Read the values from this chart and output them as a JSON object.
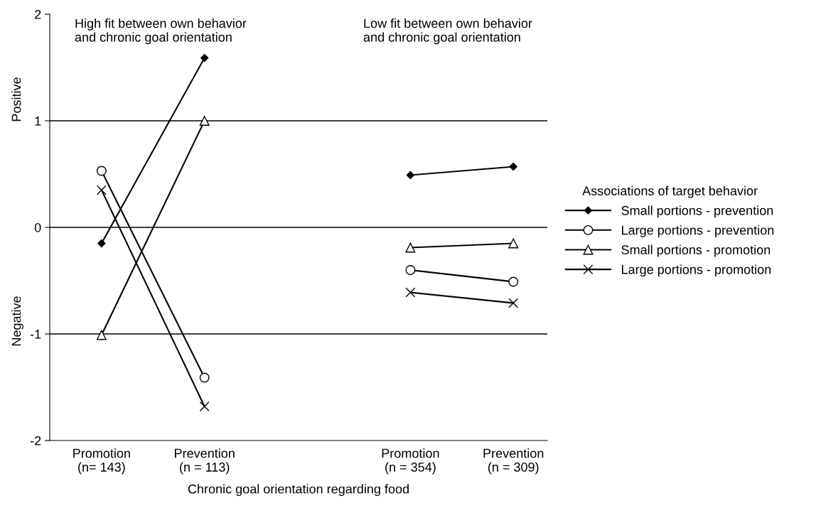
{
  "chart_data": {
    "type": "line",
    "xlabel": "Chronic goal orientation regarding food",
    "categories": [
      "Promotion\n(n= 143)",
      "Prevention\n(n = 113)",
      null,
      "Promotion\n(n = 354)",
      "Prevention\n(n = 309)"
    ],
    "ylim": [
      -2,
      2
    ],
    "yticks": [
      {
        "value": -2,
        "label": "-2"
      },
      {
        "value": -1,
        "label": "-1"
      },
      0,
      1,
      2
    ],
    "grid": "y",
    "legend": "right",
    "legend_title": "Associations of target behavior",
    "line_style": "solid",
    "annotations": [
      "High fit between own behavior\nand chronic goal orientation",
      "Low fit between own behavior\nand chronic goal orientation",
      "Positive",
      "Negative"
    ],
    "series": [
      {
        "name": "Small portions - prevention",
        "color": "#000000",
        "marker": "diamond",
        "values": [
          -0.15,
          1.59,
          null,
          0.49,
          0.57
        ]
      },
      {
        "name": "Large portions - prevention",
        "color": "#000000",
        "marker": "circle",
        "values": [
          0.53,
          -1.41,
          null,
          -0.4,
          -0.51
        ]
      },
      {
        "name": "Small portions - promotion",
        "color": "#000000",
        "marker": "triangle",
        "values": [
          -1.01,
          1.0,
          null,
          -0.19,
          -0.15
        ]
      },
      {
        "name": "Large portions - promotion",
        "color": "#000000",
        "marker": "cross",
        "values": [
          0.35,
          -1.68,
          null,
          -0.61,
          -0.71
        ]
      }
    ]
  }
}
